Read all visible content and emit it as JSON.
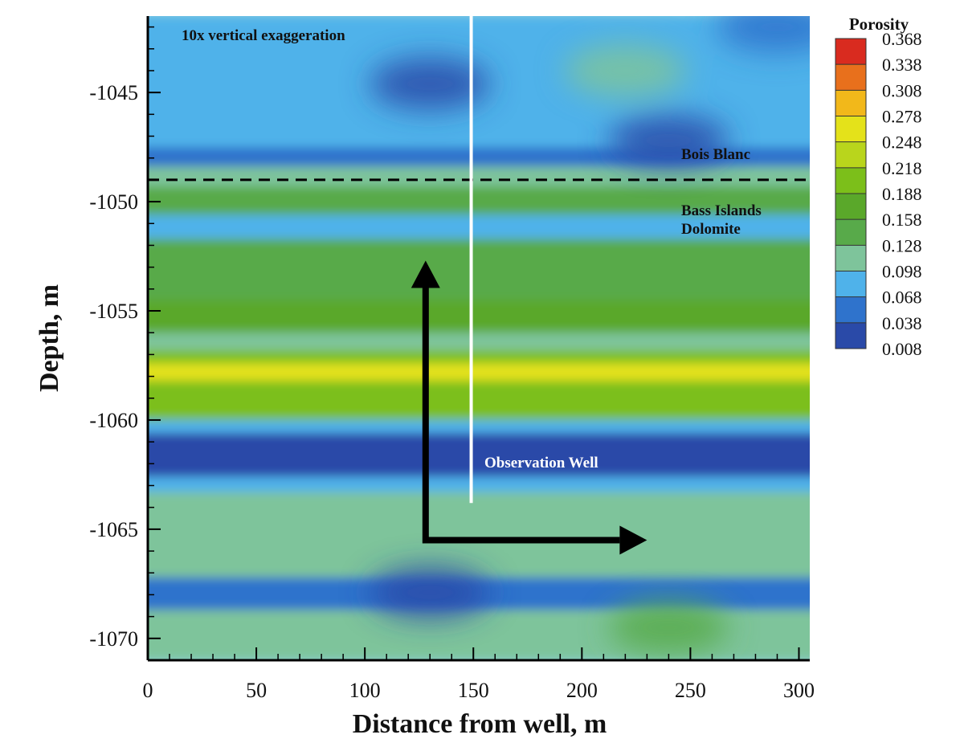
{
  "chart_data": {
    "type": "heatmap",
    "xlabel": "Distance from well, m",
    "ylabel": "Depth, m",
    "xlim": [
      0,
      305
    ],
    "ylim": [
      -1071,
      -1041.5
    ],
    "x_ticks": [
      "0",
      "50",
      "100",
      "150",
      "200",
      "250",
      "300"
    ],
    "y_ticks": [
      "-1045",
      "-1050",
      "-1055",
      "-1060",
      "-1065",
      "-1070"
    ],
    "colorbar": {
      "title": "Porosity",
      "levels": [
        "0.368",
        "0.338",
        "0.308",
        "0.278",
        "0.248",
        "0.218",
        "0.188",
        "0.158",
        "0.128",
        "0.098",
        "0.068",
        "0.038",
        "0.008"
      ],
      "colors": [
        "#d92b1f",
        "#e8701c",
        "#f2b81a",
        "#e4e21a",
        "#b9d51c",
        "#7cbf1a",
        "#5aa82a",
        "#58aa4a",
        "#7ec49b",
        "#4fb2ea",
        "#2f73cc",
        "#2a4aa8",
        "#2a2f8a"
      ]
    },
    "field_bands": [
      {
        "depth_top": -1041.5,
        "depth_bottom": -1047.5,
        "porosity": 0.11
      },
      {
        "depth_top": -1047.5,
        "depth_bottom": -1048.4,
        "porosity": 0.08
      },
      {
        "depth_top": -1048.4,
        "depth_bottom": -1049.3,
        "porosity": 0.12
      },
      {
        "depth_top": -1049.3,
        "depth_bottom": -1050.6,
        "porosity": 0.17
      },
      {
        "depth_top": -1050.6,
        "depth_bottom": -1051.7,
        "porosity": 0.1
      },
      {
        "depth_top": -1051.7,
        "depth_bottom": -1054.5,
        "porosity": 0.15
      },
      {
        "depth_top": -1054.5,
        "depth_bottom": -1056.0,
        "porosity": 0.19
      },
      {
        "depth_top": -1056.0,
        "depth_bottom": -1056.8,
        "porosity": 0.12
      },
      {
        "depth_top": -1056.8,
        "depth_bottom": -1057.4,
        "porosity": 0.22
      },
      {
        "depth_top": -1057.4,
        "depth_bottom": -1058.2,
        "porosity": 0.28
      },
      {
        "depth_top": -1058.2,
        "depth_bottom": -1060.0,
        "porosity": 0.21
      },
      {
        "depth_top": -1060.0,
        "depth_bottom": -1060.6,
        "porosity": 0.09
      },
      {
        "depth_top": -1060.6,
        "depth_bottom": -1062.6,
        "porosity": 0.04
      },
      {
        "depth_top": -1062.6,
        "depth_bottom": -1063.3,
        "porosity": 0.1
      },
      {
        "depth_top": -1063.3,
        "depth_bottom": -1067.2,
        "porosity": 0.14
      },
      {
        "depth_top": -1067.2,
        "depth_bottom": -1068.7,
        "porosity": 0.07
      },
      {
        "depth_top": -1068.7,
        "depth_bottom": -1071.0,
        "porosity": 0.13
      }
    ],
    "field_features": [
      {
        "x": 130,
        "depth": -1044.6,
        "porosity": 0.04
      },
      {
        "x": 220,
        "depth": -1044.0,
        "porosity": 0.14
      },
      {
        "x": 290,
        "depth": -1042.0,
        "porosity": 0.06
      },
      {
        "x": 240,
        "depth": -1047.2,
        "porosity": 0.05
      },
      {
        "x": 130,
        "depth": -1067.9,
        "porosity": 0.05
      },
      {
        "x": 240,
        "depth": -1069.5,
        "porosity": 0.17
      }
    ],
    "contact_depth": -1049.0,
    "well": {
      "x": 149,
      "depth_top": -1041.5,
      "depth_bottom": -1063.8
    },
    "flow_arrow": {
      "vertical": {
        "x": 128,
        "from_depth": -1065.5,
        "to_depth": -1052.7
      },
      "horizontal": {
        "depth": -1065.5,
        "from_x": 128,
        "to_x": 230
      }
    },
    "annotations": {
      "exaggeration": "10x vertical exaggeration",
      "upper_unit": "Bois Blanc",
      "lower_unit_line1": "Bass Islands",
      "lower_unit_line2": "Dolomite",
      "well_label": "Observation Well"
    }
  }
}
